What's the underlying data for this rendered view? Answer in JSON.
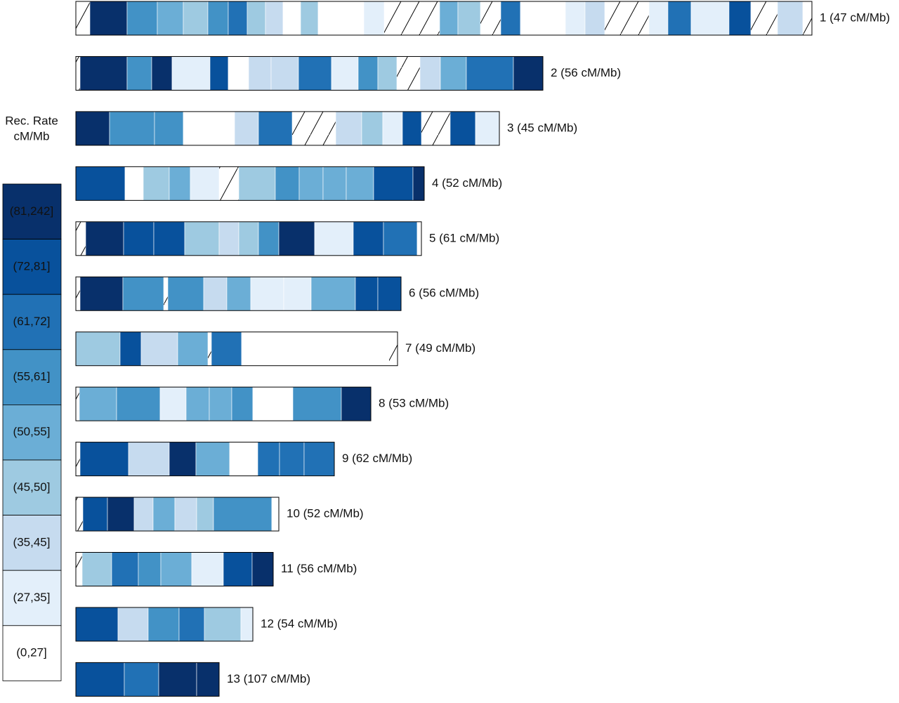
{
  "chart_data": {
    "type": "ideogram",
    "legend_title": [
      "Rec. Rate",
      "cM/Mb"
    ],
    "classes": [
      {
        "label": "(81,242]",
        "color": "#08306b"
      },
      {
        "label": "(72,81]",
        "color": "#08519c"
      },
      {
        "label": "(61,72]",
        "color": "#2171b5"
      },
      {
        "label": "(55,61]",
        "color": "#4292c6"
      },
      {
        "label": "(50,55]",
        "color": "#6baed6"
      },
      {
        "label": "(45,50]",
        "color": "#9ecae1"
      },
      {
        "label": "(35,45]",
        "color": "#c6dbef"
      },
      {
        "label": "(27,35]",
        "color": "#e3effa"
      },
      {
        "label": "(0,27]",
        "color": "#ffffff"
      }
    ],
    "chromosomes": [
      {
        "label": "1 (47 cM/Mb)",
        "segments": [
          [
            null,
            20
          ],
          [
            0,
            53
          ],
          [
            3,
            43
          ],
          [
            4,
            37
          ],
          [
            5,
            35
          ],
          [
            3,
            29
          ],
          [
            2,
            27
          ],
          [
            5,
            26
          ],
          [
            6,
            25
          ],
          [
            8,
            25
          ],
          [
            5,
            25
          ],
          [
            8,
            65
          ],
          [
            7,
            29
          ],
          [
            null,
            79
          ],
          [
            4,
            26
          ],
          [
            5,
            32
          ],
          [
            null,
            29
          ],
          [
            2,
            28
          ],
          [
            8,
            64
          ],
          [
            7,
            28
          ],
          [
            6,
            28
          ],
          [
            null,
            63
          ],
          [
            7,
            27
          ],
          [
            2,
            33
          ],
          [
            7,
            54
          ],
          [
            1,
            31
          ],
          [
            null,
            38
          ],
          [
            6,
            36
          ],
          [
            null,
            13
          ]
        ]
      },
      {
        "label": "2 (56 cM/Mb)",
        "segments": [
          [
            null,
            6
          ],
          [
            0,
            67
          ],
          [
            3,
            35
          ],
          [
            0,
            29
          ],
          [
            7,
            54
          ],
          [
            1,
            26
          ],
          [
            8,
            29
          ],
          [
            6,
            32
          ],
          [
            6,
            39
          ],
          [
            2,
            47
          ],
          [
            7,
            38
          ],
          [
            3,
            28
          ],
          [
            5,
            27
          ],
          [
            null,
            33
          ],
          [
            6,
            29
          ],
          [
            4,
            37
          ],
          [
            2,
            67
          ],
          [
            0,
            42
          ]
        ]
      },
      {
        "label": "3 (45 cM/Mb)",
        "segments": [
          [
            0,
            48
          ],
          [
            3,
            64
          ],
          [
            3,
            41
          ],
          [
            8,
            73
          ],
          [
            6,
            34
          ],
          [
            2,
            48
          ],
          [
            null,
            62
          ],
          [
            6,
            37
          ],
          [
            5,
            30
          ],
          [
            7,
            28
          ],
          [
            1,
            27
          ],
          [
            null,
            41
          ],
          [
            1,
            36
          ],
          [
            7,
            34
          ]
        ]
      },
      {
        "label": "4 (52 cM/Mb)",
        "segments": [
          [
            1,
            70
          ],
          [
            8,
            26
          ],
          [
            5,
            37
          ],
          [
            4,
            30
          ],
          [
            7,
            41
          ],
          [
            null,
            28
          ],
          [
            5,
            52
          ],
          [
            3,
            34
          ],
          [
            4,
            34
          ],
          [
            4,
            33
          ],
          [
            4,
            39
          ],
          [
            1,
            56
          ],
          [
            0,
            16
          ]
        ]
      },
      {
        "label": "5 (61 cM/Mb)",
        "segments": [
          [
            null,
            14
          ],
          [
            0,
            54
          ],
          [
            1,
            43
          ],
          [
            1,
            44
          ],
          [
            5,
            49
          ],
          [
            6,
            28
          ],
          [
            5,
            28
          ],
          [
            3,
            29
          ],
          [
            0,
            51
          ],
          [
            7,
            55
          ],
          [
            1,
            43
          ],
          [
            2,
            48
          ],
          [
            8,
            6
          ]
        ]
      },
      {
        "label": "6 (56 cM/Mb)",
        "segments": [
          [
            null,
            6
          ],
          [
            0,
            61
          ],
          [
            3,
            58
          ],
          [
            null,
            6
          ],
          [
            3,
            51
          ],
          [
            6,
            33
          ],
          [
            4,
            34
          ],
          [
            7,
            47
          ],
          [
            7,
            39
          ],
          [
            4,
            63
          ],
          [
            1,
            32
          ],
          [
            1,
            33
          ]
        ]
      },
      {
        "label": "7 (49 cM/Mb)",
        "segments": [
          [
            5,
            63
          ],
          [
            1,
            30
          ],
          [
            6,
            52
          ],
          [
            4,
            43
          ],
          [
            null,
            5
          ],
          [
            2,
            43
          ],
          [
            8,
            210
          ],
          [
            null,
            12
          ]
        ]
      },
      {
        "label": "8 (53 cM/Mb)",
        "segments": [
          [
            null,
            5
          ],
          [
            4,
            53
          ],
          [
            3,
            62
          ],
          [
            7,
            37
          ],
          [
            4,
            33
          ],
          [
            4,
            32
          ],
          [
            3,
            30
          ],
          [
            8,
            57
          ],
          [
            3,
            69
          ],
          [
            0,
            42
          ]
        ]
      },
      {
        "label": "9 (62 cM/Mb)",
        "segments": [
          [
            null,
            6
          ],
          [
            1,
            69
          ],
          [
            6,
            58
          ],
          [
            0,
            38
          ],
          [
            4,
            48
          ],
          [
            8,
            40
          ],
          [
            2,
            31
          ],
          [
            2,
            35
          ],
          [
            2,
            43
          ]
        ]
      },
      {
        "label": "10 (52 cM/Mb)",
        "segments": [
          [
            null,
            10
          ],
          [
            1,
            35
          ],
          [
            0,
            38
          ],
          [
            6,
            27
          ],
          [
            4,
            31
          ],
          [
            6,
            31
          ],
          [
            5,
            24
          ],
          [
            3,
            83
          ],
          [
            8,
            10
          ]
        ]
      },
      {
        "label": "11 (56 cM/Mb)",
        "segments": [
          [
            null,
            9
          ],
          [
            5,
            42
          ],
          [
            2,
            38
          ],
          [
            3,
            32
          ],
          [
            4,
            44
          ],
          [
            7,
            45
          ],
          [
            1,
            41
          ],
          [
            0,
            30
          ]
        ]
      },
      {
        "label": "12 (54 cM/Mb)",
        "segments": [
          [
            1,
            60
          ],
          [
            6,
            43
          ],
          [
            3,
            44
          ],
          [
            2,
            36
          ],
          [
            5,
            52
          ],
          [
            7,
            17
          ]
        ]
      },
      {
        "label": "13 (107 cM/Mb)",
        "segments": [
          [
            1,
            69
          ],
          [
            2,
            49
          ],
          [
            0,
            54
          ],
          [
            0,
            32
          ]
        ]
      }
    ]
  }
}
